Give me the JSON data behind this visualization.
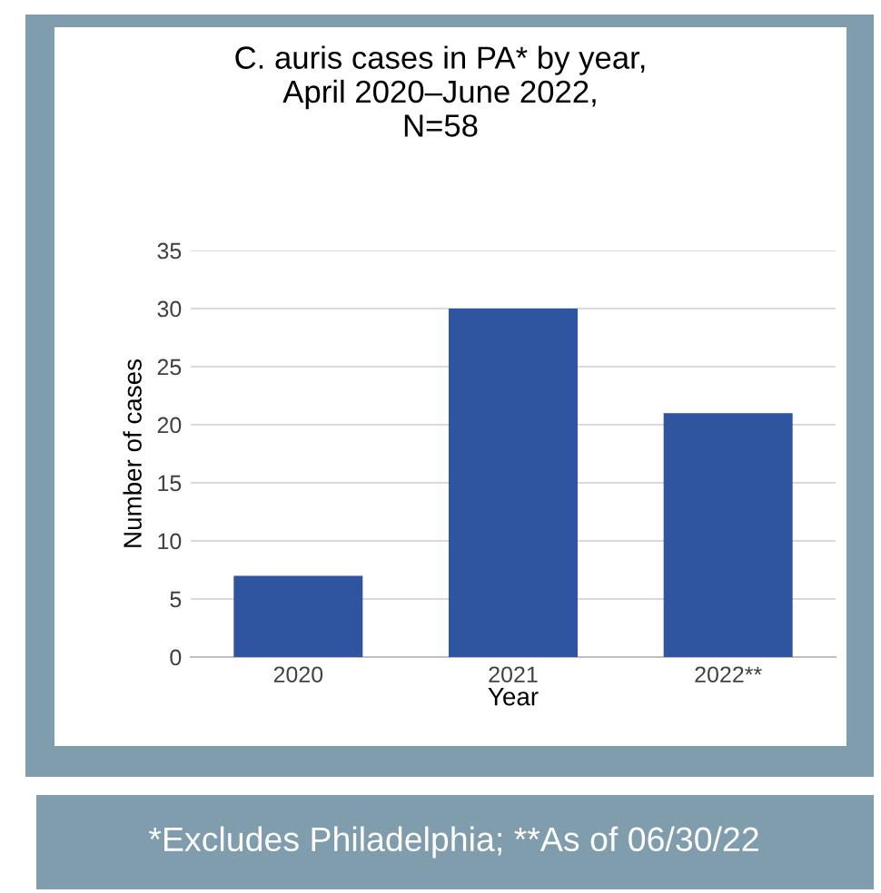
{
  "chart_data": {
    "type": "bar",
    "title": "C. auris cases in PA* by year,\nApril 2020–June 2022,\nN=58",
    "xlabel": "Year",
    "ylabel": "Number of cases",
    "categories": [
      "2020",
      "2021",
      "2022**"
    ],
    "values": [
      7,
      30,
      21
    ],
    "color": "#2f55a0",
    "ylim": [
      0,
      35
    ],
    "yticks": [
      0,
      5,
      10,
      15,
      20,
      25,
      30,
      35
    ],
    "grid": "y",
    "annotations": [
      "*Excludes Philadelphia; **As of 06/30/22"
    ]
  }
}
